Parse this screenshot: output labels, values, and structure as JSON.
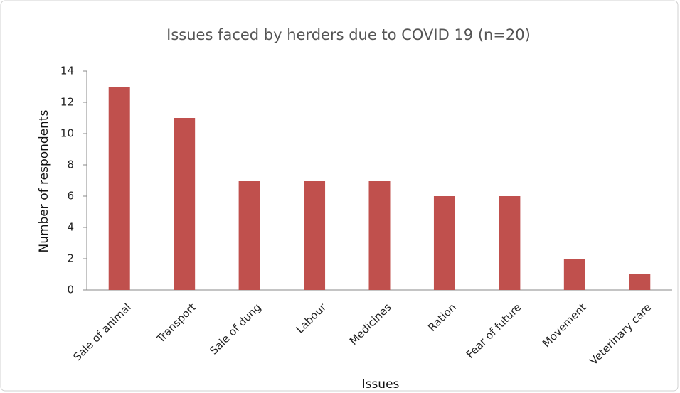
{
  "chart_data": {
    "type": "bar",
    "title": "Issues  faced by herders due to COVID 19 (n=20)",
    "x_label": "Issues",
    "y_label": "Number  of respondents",
    "categories": [
      "Sale of animal",
      "Transport",
      "Sale of dung",
      "Labour",
      "Medicines",
      "Ration",
      "Fear of future",
      "Movement",
      "Veterinary care"
    ],
    "values": [
      13,
      11,
      7,
      7,
      7,
      6,
      6,
      2,
      1
    ],
    "color": "#c0504d",
    "ylim": [
      0,
      14
    ],
    "yticks": [
      0,
      2,
      4,
      6,
      8,
      10,
      12,
      14
    ],
    "grid": false
  }
}
